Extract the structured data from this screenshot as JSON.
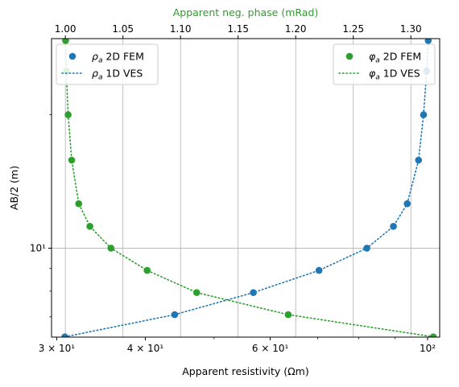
{
  "chart_data": {
    "type": "scatter",
    "xlabel": "Apparent resistivity (Ωm)",
    "x2label": "Apparent neg. phase (mRad)",
    "ylabel": "AB/2 (m)",
    "x_scale": "log",
    "x_range": [
      29.5,
      104
    ],
    "x2_range": [
      0.988,
      1.325
    ],
    "y_scale": "log",
    "y_range": [
      6.3,
      29.7
    ],
    "grid": true,
    "x_ticks": [
      {
        "v": 30,
        "label": "3 × 10¹"
      },
      {
        "v": 40,
        "label": "4 × 10¹"
      },
      {
        "v": 60,
        "label": "6 × 10¹"
      },
      {
        "v": 100,
        "label": "10²"
      }
    ],
    "x2_ticks": [
      1.0,
      1.05,
      1.1,
      1.15,
      1.2,
      1.25,
      1.3
    ],
    "x2_tick_labels": [
      "1.00",
      "1.05",
      "1.10",
      "1.15",
      "1.20",
      "1.25",
      "1.30"
    ],
    "y_ticks": [
      {
        "v": 10,
        "label": "10¹"
      }
    ],
    "y_grid": [
      10
    ],
    "y_minor": [
      7,
      8,
      9,
      20
    ],
    "ab2": [
      6.31,
      7.08,
      7.94,
      8.91,
      10.0,
      11.2,
      12.6,
      15.8,
      20.0,
      25.1,
      29.4
    ],
    "series": [
      {
        "name": "ρa 2D FEM",
        "axis": "bottom",
        "marker": "circle",
        "color": "#1f77b4",
        "x": [
          30.8,
          44.0,
          56.8,
          70.3,
          82.1,
          89.5,
          93.6,
          97.1,
          98.7,
          99.7,
          100.2
        ],
        "y": [
          6.31,
          7.08,
          7.94,
          8.91,
          10.0,
          11.2,
          12.6,
          15.8,
          20.0,
          25.1,
          29.4
        ]
      },
      {
        "name": "ρa 1D VES",
        "axis": "bottom",
        "line": "dotted",
        "color": "#1f77b4",
        "x": [
          30.8,
          44.0,
          56.8,
          70.3,
          82.1,
          89.5,
          93.6,
          97.1,
          98.7,
          99.7,
          100.2
        ],
        "y": [
          6.31,
          7.08,
          7.94,
          8.91,
          10.0,
          11.2,
          12.6,
          15.8,
          20.0,
          25.1,
          29.4
        ]
      },
      {
        "name": "φa 2D FEM",
        "axis": "top",
        "marker": "circle",
        "color": "#2ca02c",
        "x": [
          1.3195,
          1.1935,
          1.114,
          1.071,
          1.0396,
          1.0213,
          1.0116,
          1.0055,
          1.0024,
          1.0008,
          1.0002
        ],
        "y": [
          6.31,
          7.08,
          7.94,
          8.91,
          10.0,
          11.2,
          12.6,
          15.8,
          20.0,
          25.1,
          29.4
        ]
      },
      {
        "name": "φa 1D VES",
        "axis": "top",
        "line": "dotted",
        "color": "#2ca02c",
        "x": [
          1.3195,
          1.1935,
          1.114,
          1.071,
          1.0396,
          1.0213,
          1.0116,
          1.0055,
          1.0024,
          1.0008,
          1.0002
        ],
        "y": [
          6.31,
          7.08,
          7.94,
          8.91,
          10.0,
          11.2,
          12.6,
          15.8,
          20.0,
          25.1,
          29.4
        ]
      }
    ],
    "legends": [
      {
        "placement": "upper-left",
        "entries": [
          {
            "sym": "ρ",
            "rest": " 2D FEM",
            "kind": "marker",
            "color": "#1f77b4"
          },
          {
            "sym": "ρ",
            "rest": " 1D VES",
            "kind": "line",
            "color": "#1f77b4"
          }
        ]
      },
      {
        "placement": "upper-right",
        "entries": [
          {
            "sym": "φ",
            "rest": " 2D FEM",
            "kind": "marker",
            "color": "#2ca02c"
          },
          {
            "sym": "φ",
            "rest": " 1D VES",
            "kind": "line",
            "color": "#2ca02c"
          }
        ]
      }
    ],
    "colors": {
      "rho": "#1f77b4",
      "phi": "#2ca02c",
      "grid": "#b0b0b0",
      "top_axis": "#2ca02c"
    }
  }
}
